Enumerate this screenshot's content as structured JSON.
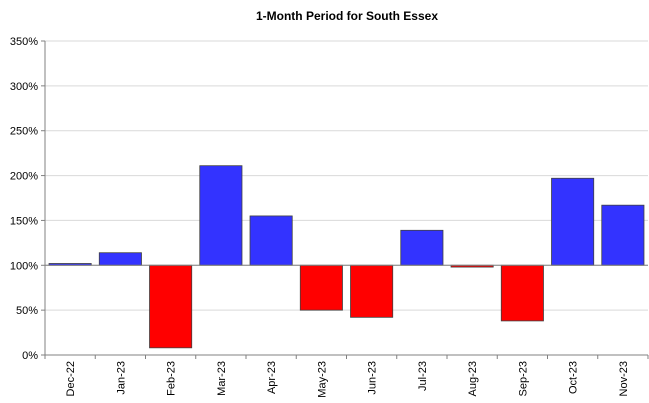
{
  "chart_data": {
    "type": "bar",
    "title": "1-Month Period for South Essex",
    "xlabel": "",
    "ylabel": "",
    "categories": [
      "Dec-22",
      "Jan-23",
      "Feb-23",
      "Mar-23",
      "Apr-23",
      "May-23",
      "Jun-23",
      "Jul-23",
      "Aug-23",
      "Sep-23",
      "Oct-23",
      "Nov-23"
    ],
    "values": [
      102,
      114,
      8,
      211,
      155,
      50,
      42,
      139,
      98,
      38,
      197,
      167
    ],
    "baseline": 100,
    "ylim": [
      0,
      350
    ],
    "yticks": [
      "0%",
      "50%",
      "100%",
      "150%",
      "200%",
      "250%",
      "300%",
      "350%"
    ],
    "grid": true,
    "legend": "none",
    "colors": {
      "above": "#3333ff",
      "below": "#ff0000"
    }
  }
}
